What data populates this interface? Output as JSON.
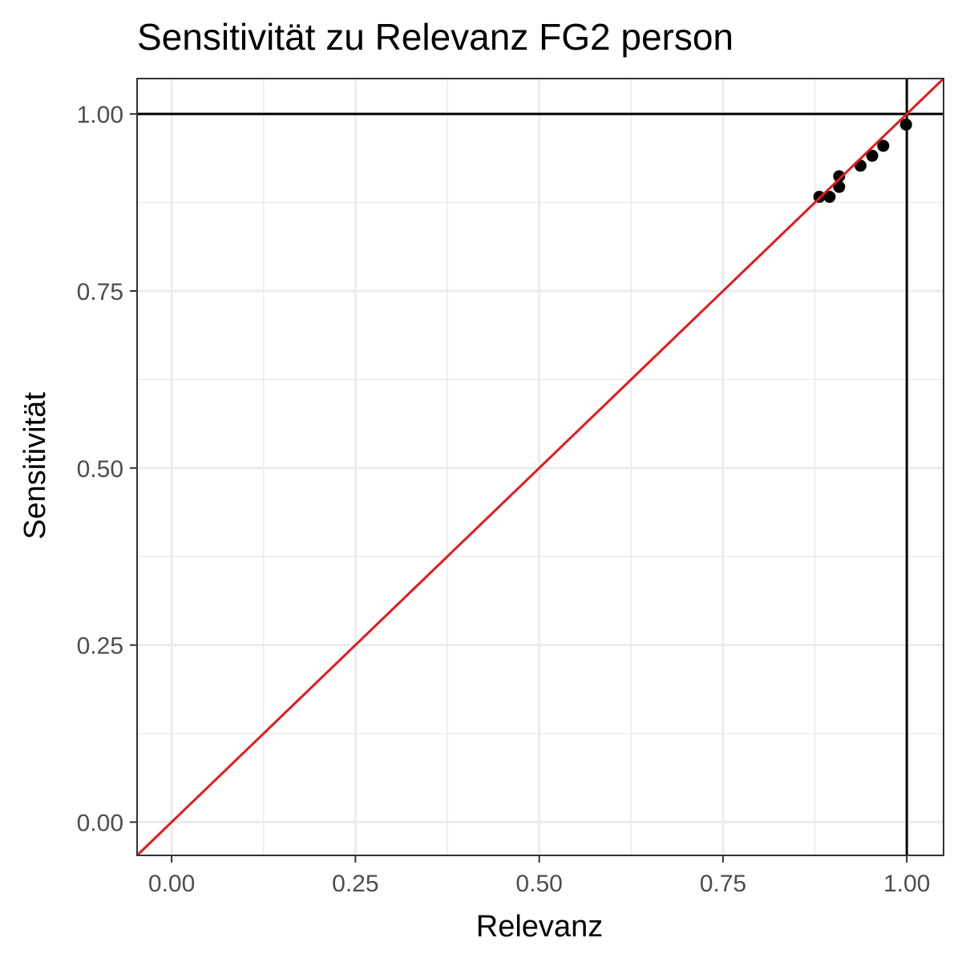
{
  "chart_data": {
    "type": "scatter",
    "title": "Sensitivität zu Relevanz FG2 person",
    "xlabel": "Relevanz",
    "ylabel": "Sensitivität",
    "xlim": [
      -0.047,
      1.05
    ],
    "ylim": [
      -0.047,
      1.05
    ],
    "x_ticks": [
      0.0,
      0.25,
      0.5,
      0.75,
      1.0
    ],
    "x_tick_labels": [
      "0.00",
      "0.25",
      "0.50",
      "0.75",
      "1.00"
    ],
    "y_ticks": [
      0.0,
      0.25,
      0.5,
      0.75,
      1.0
    ],
    "y_tick_labels": [
      "0.00",
      "0.25",
      "0.50",
      "0.75",
      "1.00"
    ],
    "grid": true,
    "points": {
      "x": [
        0.881,
        0.895,
        0.908,
        0.908,
        0.937,
        0.953,
        0.968,
        0.999
      ],
      "y": [
        0.883,
        0.883,
        0.897,
        0.912,
        0.927,
        0.941,
        0.955,
        0.985
      ]
    },
    "reference_lines": {
      "horizontal_y": 1.0,
      "vertical_x": 1.0,
      "identity_line": {
        "slope": 1,
        "intercept": 0
      }
    },
    "colors": {
      "points": "#000000",
      "identity_line": "#e41a1c",
      "reference_lines": "#000000",
      "grid": "#ebebeb",
      "panel_border": "#333333"
    }
  }
}
